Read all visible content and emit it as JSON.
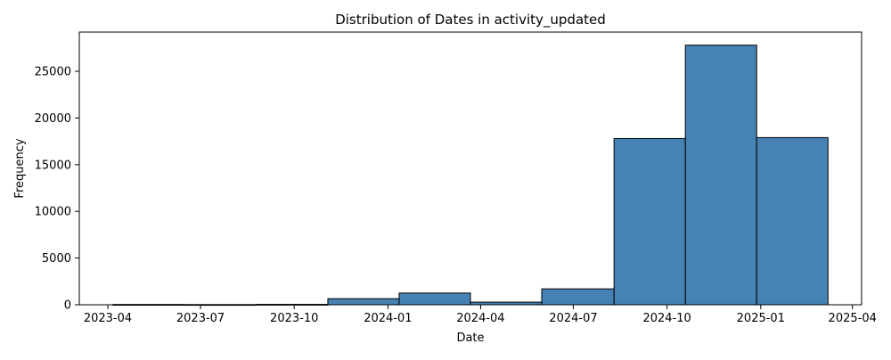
{
  "chart_data": {
    "type": "histogram",
    "title": "Distribution of Dates in activity_updated",
    "xlabel": "Date",
    "ylabel": "Frequency",
    "x_ticks": [
      "2023-04",
      "2023-07",
      "2023-10",
      "2024-01",
      "2024-04",
      "2024-07",
      "2024-10",
      "2025-01",
      "2025-04"
    ],
    "y_ticks": [
      0,
      5000,
      10000,
      15000,
      20000,
      25000
    ],
    "bins": [
      {
        "start": "2023-04-06",
        "end": "2023-06-15",
        "value": 30
      },
      {
        "start": "2023-06-15",
        "end": "2023-08-25",
        "value": 20
      },
      {
        "start": "2023-08-25",
        "end": "2023-11-03",
        "value": 40
      },
      {
        "start": "2023-11-03",
        "end": "2024-01-12",
        "value": 650
      },
      {
        "start": "2024-01-12",
        "end": "2024-03-22",
        "value": 1250
      },
      {
        "start": "2024-03-22",
        "end": "2024-05-31",
        "value": 280
      },
      {
        "start": "2024-05-31",
        "end": "2024-08-10",
        "value": 1700
      },
      {
        "start": "2024-08-10",
        "end": "2024-10-19",
        "value": 17800
      },
      {
        "start": "2024-10-19",
        "end": "2024-12-28",
        "value": 27800
      },
      {
        "start": "2024-12-28",
        "end": "2025-03-08",
        "value": 17900
      }
    ],
    "xlim": [
      "2023-03-04",
      "2025-04-10"
    ],
    "ylim": [
      0,
      29200
    ],
    "bar_color": "#4682b4",
    "edge_color": "#000000",
    "grid": false,
    "legend": false
  }
}
